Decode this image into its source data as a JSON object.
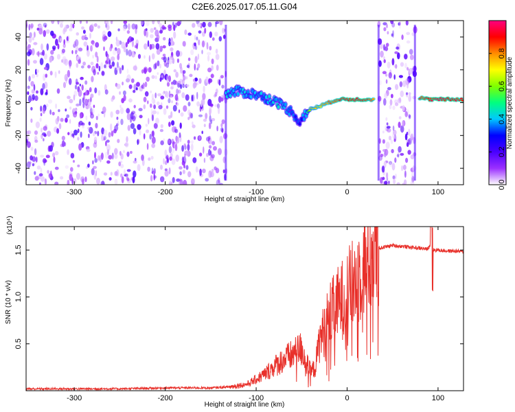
{
  "title": "C2E6.2025.017.05.11.G04",
  "chart_data": [
    {
      "type": "heatmap",
      "xlabel": "Height of straight line (km)",
      "ylabel": "Frequency (Hz)",
      "xlim": [
        -353,
        128
      ],
      "ylim": [
        -50,
        50
      ],
      "xticks": [
        -300,
        -200,
        -100,
        0,
        100
      ],
      "yticks": [
        -40,
        -20,
        0,
        20,
        40
      ],
      "colorbar": {
        "label": "Normalized spectral amplitude",
        "range": [
          0,
          1
        ],
        "ticks": [
          0.0,
          0.2,
          0.4,
          0.6,
          0.8
        ],
        "colors": [
          "#ffffff",
          "#9b30ff",
          "#4a00ff",
          "#0000ff",
          "#00c8ff",
          "#00ff7f",
          "#7fff00",
          "#ffff00",
          "#ff8c00",
          "#ff0000",
          "#ff0080"
        ]
      },
      "noise_regions": [
        [
          -353,
          -133
        ],
        [
          35,
          75
        ]
      ],
      "signal_track": [
        {
          "x": -133,
          "y": 5,
          "amp": 0.4
        },
        {
          "x": -120,
          "y": 7,
          "amp": 0.4
        },
        {
          "x": -110,
          "y": 6,
          "amp": 0.38
        },
        {
          "x": -100,
          "y": 5,
          "amp": 0.4
        },
        {
          "x": -90,
          "y": 3,
          "amp": 0.38
        },
        {
          "x": -80,
          "y": 1,
          "amp": 0.42
        },
        {
          "x": -70,
          "y": -2,
          "amp": 0.4
        },
        {
          "x": -60,
          "y": -6,
          "amp": 0.35
        },
        {
          "x": -52,
          "y": -12,
          "amp": 0.3
        },
        {
          "x": -45,
          "y": -6,
          "amp": 0.4
        },
        {
          "x": -40,
          "y": -4,
          "amp": 0.7
        },
        {
          "x": -30,
          "y": -2,
          "amp": 0.75
        },
        {
          "x": -20,
          "y": 0,
          "amp": 0.8
        },
        {
          "x": -10,
          "y": 2,
          "amp": 0.85
        },
        {
          "x": 0,
          "y": 2,
          "amp": 0.9
        },
        {
          "x": 10,
          "y": 2,
          "amp": 0.92
        },
        {
          "x": 20,
          "y": 2,
          "amp": 0.9
        },
        {
          "x": 30,
          "y": 2,
          "amp": 0.8
        },
        {
          "x": 80,
          "y": 3,
          "amp": 0.85
        },
        {
          "x": 90,
          "y": 2,
          "amp": 0.9
        },
        {
          "x": 100,
          "y": 2,
          "amp": 0.92
        },
        {
          "x": 110,
          "y": 2,
          "amp": 0.92
        },
        {
          "x": 120,
          "y": 2,
          "amp": 0.9
        },
        {
          "x": 128,
          "y": 2,
          "amp": 0.88
        }
      ]
    },
    {
      "type": "line",
      "xlabel": "Height of straight line (km)",
      "ylabel": "SNR (10 * v/v)",
      "yscale_label": "(x10⁴)",
      "xlim": [
        -353,
        128
      ],
      "ylim": [
        0,
        1.75
      ],
      "xticks": [
        -300,
        -200,
        -100,
        0,
        100
      ],
      "yticks": [
        0.5,
        1.0,
        1.5
      ],
      "ytick_labels": [
        "0.5",
        "1.0",
        "1.5"
      ],
      "color": "#e8302a",
      "series": [
        {
          "x": [
            -353,
            -300,
            -250,
            -200,
            -170,
            -150,
            -130,
            -110,
            -100,
            -90,
            -80,
            -70,
            -60,
            -50,
            -45,
            -40,
            -35,
            -30,
            -25,
            -20,
            -15,
            -10,
            -5,
            0,
            5,
            10,
            15,
            20,
            25,
            30,
            35,
            40,
            50,
            60,
            70,
            80,
            88,
            92,
            95,
            100,
            110,
            120,
            128
          ],
          "values": [
            0.02,
            0.02,
            0.02,
            0.03,
            0.03,
            0.03,
            0.04,
            0.07,
            0.12,
            0.18,
            0.26,
            0.33,
            0.38,
            0.45,
            0.3,
            0.2,
            0.25,
            0.55,
            0.65,
            0.8,
            0.85,
            0.92,
            0.98,
            1.05,
            1.1,
            1.2,
            1.3,
            1.4,
            1.45,
            1.5,
            1.52,
            1.53,
            1.55,
            1.54,
            1.53,
            1.52,
            1.51,
            1.55,
            1.5,
            1.5,
            1.49,
            1.49,
            1.48
          ]
        }
      ]
    }
  ]
}
